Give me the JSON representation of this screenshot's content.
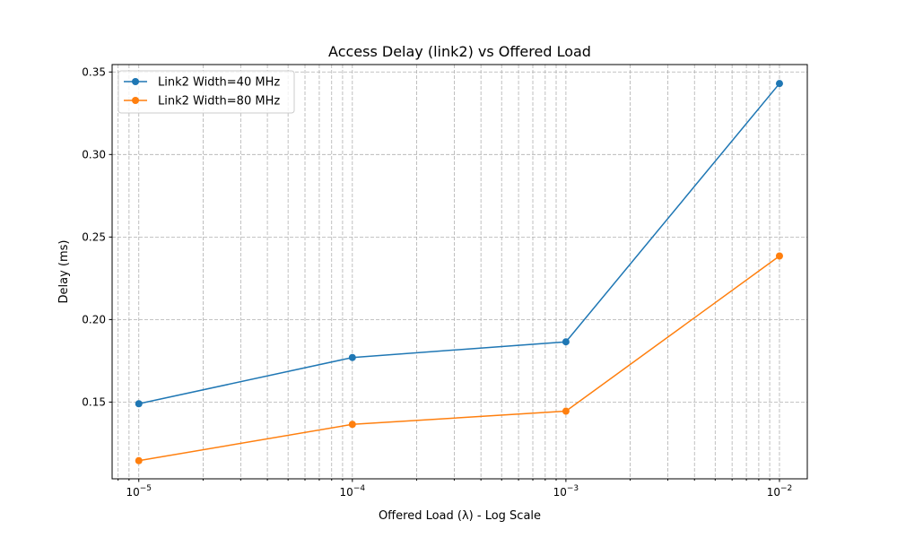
{
  "chart_data": {
    "type": "line",
    "title": "Access Delay (link2) vs Offered Load",
    "xlabel": "Offered Load (λ) - Log Scale",
    "ylabel": "Delay (ms)",
    "xscale": "log",
    "xlim": [
      7.5e-06,
      0.0135
    ],
    "ylim": [
      0.1035,
      0.3545
    ],
    "grid": true,
    "grid_minor": true,
    "legend_position": "top-left",
    "x": [
      1e-05,
      0.0001,
      0.001,
      0.01
    ],
    "x_tick_labels": [
      {
        "base": "10",
        "exp": "−5"
      },
      {
        "base": "10",
        "exp": "−4"
      },
      {
        "base": "10",
        "exp": "−3"
      },
      {
        "base": "10",
        "exp": "−2"
      }
    ],
    "y_ticks": [
      0.15,
      0.2,
      0.25,
      0.3,
      0.35
    ],
    "y_tick_labels": [
      "0.15",
      "0.20",
      "0.25",
      "0.30",
      "0.35"
    ],
    "series": [
      {
        "name": "Link2 Width=40 MHz",
        "color": "#1f77b4",
        "values": [
          0.149,
          0.177,
          0.1865,
          0.343
        ]
      },
      {
        "name": "Link2 Width=80 MHz",
        "color": "#ff7f0e",
        "values": [
          0.1145,
          0.1365,
          0.1445,
          0.2385
        ]
      }
    ]
  }
}
